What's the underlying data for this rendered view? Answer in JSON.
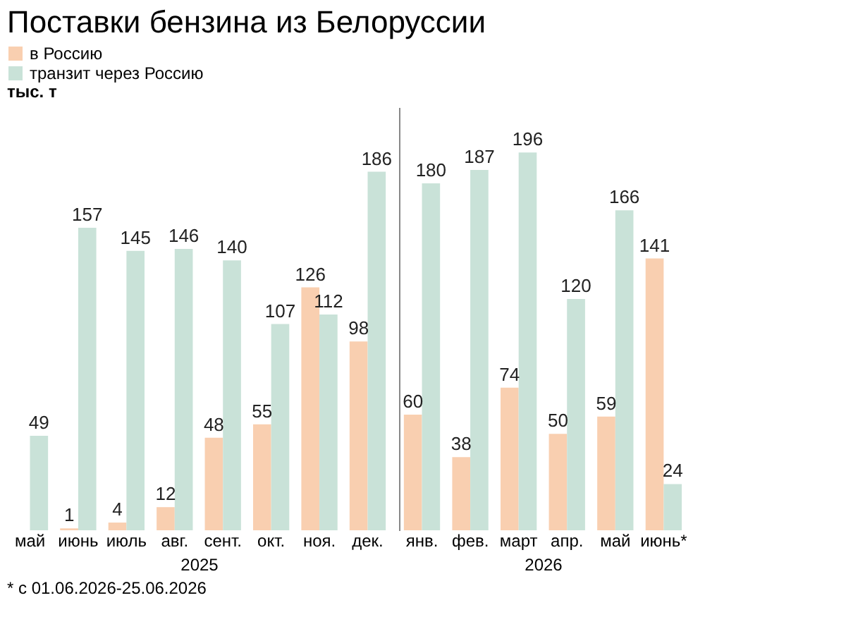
{
  "chart_data": [
    {
      "type": "bar",
      "title": "Поставки бензина из Белоруссии",
      "ylabel": "тыс. т",
      "xlabel": "2025",
      "legend": "top left",
      "data_labels": true,
      "tick_labels": "x",
      "grid": false,
      "categories": [
        "май",
        "июнь",
        "июль",
        "авг.",
        "сент.",
        "окт.",
        "ноя.",
        "дек."
      ],
      "series": [
        {
          "name": "в Россию",
          "color": "#f9cfb0",
          "values": [
            null,
            1,
            4,
            12,
            48,
            55,
            126,
            98
          ]
        },
        {
          "name": "транзит через Россию",
          "color": "#c9e2d8",
          "values": [
            49,
            157,
            145,
            146,
            140,
            107,
            112,
            186
          ]
        }
      ],
      "annotations": [
        "* с 01.06.2026-25.06.2026"
      ]
    },
    {
      "type": "bar",
      "xlabel": "2026",
      "data_labels": true,
      "tick_labels": "x",
      "grid": false,
      "categories": [
        "янв.",
        "фев.",
        "март",
        "апр.",
        "май",
        "июнь*"
      ],
      "series": [
        {
          "color": "#f9cfb0",
          "values": [
            60,
            38,
            74,
            50,
            59,
            141
          ]
        },
        {
          "color": "#c9e2d8",
          "values": [
            180,
            187,
            196,
            120,
            166,
            24
          ]
        }
      ]
    }
  ]
}
